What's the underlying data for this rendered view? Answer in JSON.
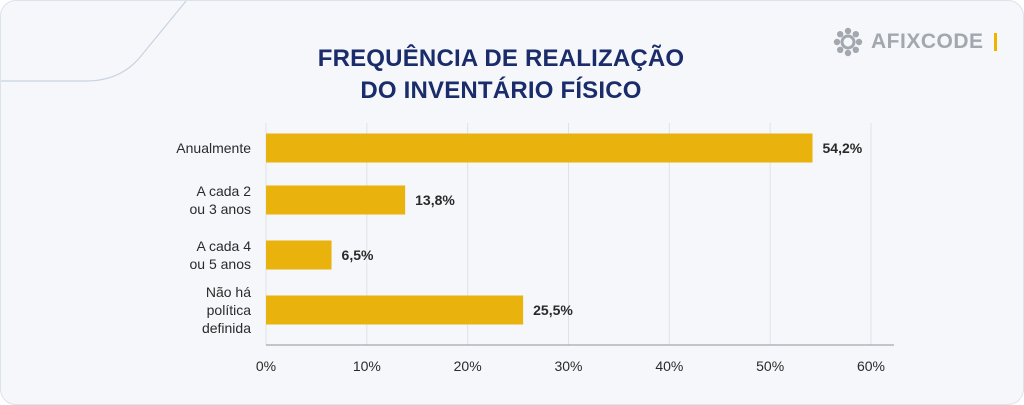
{
  "brand": {
    "name": "AFIXCODE",
    "icon": "gear-flower-icon",
    "accent_color": "#f0b400",
    "title_color": "#1b2c6b"
  },
  "chart_data": {
    "type": "bar",
    "orientation": "horizontal",
    "title": [
      "FREQUÊNCIA DE REALIZAÇÃO",
      "DO INVENTÁRIO FÍSICO"
    ],
    "categories": [
      [
        "Anualmente"
      ],
      [
        "A cada 2",
        "ou 3 anos"
      ],
      [
        "A cada 4",
        "ou 5 anos"
      ],
      [
        "Não há",
        "política",
        "definida"
      ]
    ],
    "values": [
      54.2,
      13.8,
      6.5,
      25.5
    ],
    "value_labels": [
      "54,2%",
      "13,8%",
      "6,5%",
      "25,5%"
    ],
    "x_ticks": [
      "0%",
      "10%",
      "20%",
      "30%",
      "40%",
      "50%",
      "60%"
    ],
    "xlim": [
      0,
      60
    ],
    "bar_color": "#e9b20d",
    "grid": true,
    "legend": "none"
  }
}
